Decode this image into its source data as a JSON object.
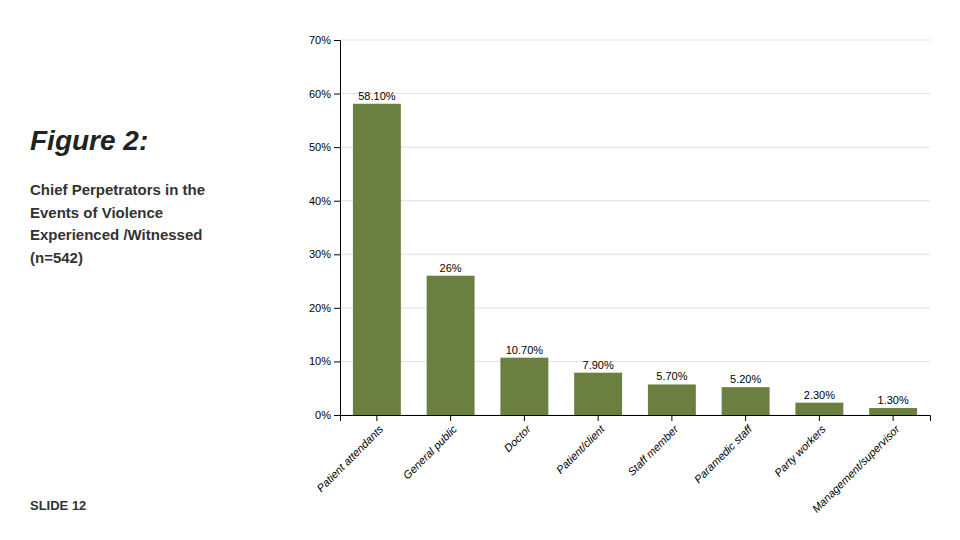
{
  "chart_data": {
    "type": "bar",
    "title": "Figure 2:",
    "subtitle": "Chief Perpetrators in the\nEvents of Violence\nExperienced /Witnessed\n(n=542)",
    "annotations": [
      "SLIDE  12"
    ],
    "categories": [
      "Patient attendants",
      "General public",
      "Doctor",
      "Patient/client",
      "Staff member",
      "Paramedic staff",
      "Party workers",
      "Management/supervisor"
    ],
    "values": [
      58.1,
      26.0,
      10.7,
      7.9,
      5.7,
      5.2,
      2.3,
      1.3
    ],
    "value_labels": [
      "58.10%",
      "26%",
      "10.70%",
      "7.90%",
      "5.70%",
      "5.20%",
      "2.30%",
      "1.30%"
    ],
    "color": "#6b8040",
    "ylim": [
      0,
      70
    ],
    "yticks": [
      {
        "value": 0,
        "label": "0%"
      },
      {
        "value": 10,
        "label": "10%"
      },
      {
        "value": 20,
        "label": "20%"
      },
      {
        "value": 30,
        "label": "30%"
      },
      {
        "value": 40,
        "label": "40%"
      },
      {
        "value": 50,
        "label": "50%"
      },
      {
        "value": 60,
        "label": "60%"
      },
      {
        "value": 70,
        "label": "70%"
      }
    ],
    "grid": true,
    "data_labels": true
  }
}
